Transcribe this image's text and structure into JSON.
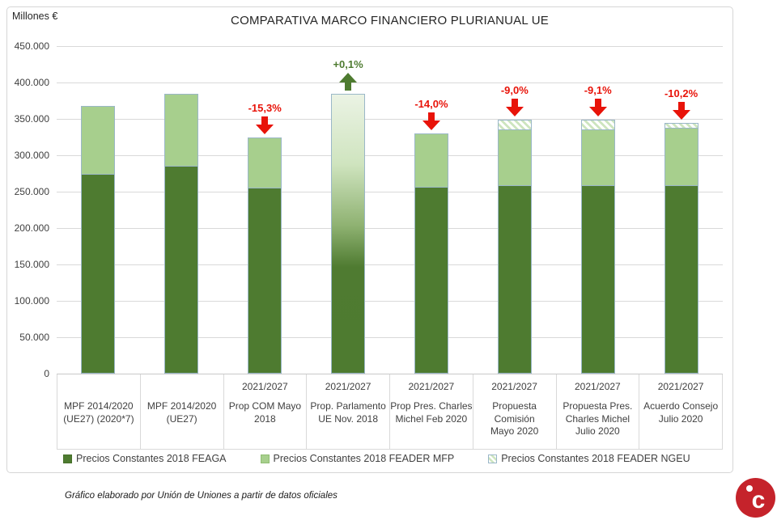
{
  "title": "COMPARATIVA MARCO FINANCIERO PLURIANUAL UE",
  "y_axis": {
    "unit_label": "Millones €",
    "tick_labels": [
      "450.000",
      "400.000",
      "350.000",
      "300.000",
      "250.000",
      "200.000",
      "150.000",
      "100.000",
      "50.000",
      "0"
    ],
    "max": 450000,
    "step": 50000
  },
  "chart_data": {
    "type": "bar",
    "subtype": "stacked",
    "title": "COMPARATIVA MARCO FINANCIERO PLURIANUAL UE",
    "ylabel": "Millones €",
    "ylim": [
      0,
      450000
    ],
    "grid": true,
    "legend_position": "bottom",
    "series_names": [
      "Precios Constantes 2018 FEAGA",
      "Precios Constantes 2018 FEADER MFP",
      "Precios Constantes 2018 FEADER NGEU"
    ],
    "categories": [
      {
        "period": "",
        "name_lines": [
          "MPF 2014/2020",
          "(UE27) (2020*7)"
        ]
      },
      {
        "period": "",
        "name_lines": [
          "MPF 2014/2020",
          "(UE27)"
        ]
      },
      {
        "period": "2021/2027",
        "name_lines": [
          "Prop COM Mayo",
          "2018"
        ]
      },
      {
        "period": "2021/2027",
        "name_lines": [
          "Prop. Parlamento",
          "UE Nov. 2018"
        ]
      },
      {
        "period": "2021/2027",
        "name_lines": [
          "Prop Pres. Charles",
          "Michel Feb 2020"
        ]
      },
      {
        "period": "2021/2027",
        "name_lines": [
          "Propuesta",
          "Comisión",
          "Mayo 2020"
        ]
      },
      {
        "period": "2021/2027",
        "name_lines": [
          "Propuesta Pres.",
          "Charles Michel",
          "Julio 2020"
        ]
      },
      {
        "period": "2021/2027",
        "name_lines": [
          "Acuerdo Consejo",
          "Julio 2020"
        ]
      }
    ],
    "bars": [
      {
        "feaga": 273000,
        "feader_mfp": 95000,
        "feader_ngeu": 0,
        "total": 368000,
        "gradient": false,
        "annotation": null
      },
      {
        "feaga": 285000,
        "feader_mfp": 99000,
        "feader_ngeu": 0,
        "total": 384000,
        "gradient": false,
        "annotation": null
      },
      {
        "feaga": 254000,
        "feader_mfp": 71000,
        "feader_ngeu": 0,
        "total": 325000,
        "gradient": false,
        "annotation": {
          "text": "-15,3%",
          "direction": "down",
          "sentiment": "neg"
        }
      },
      {
        "feaga": 0,
        "feader_mfp": 0,
        "feader_ngeu": 0,
        "total": 384000,
        "gradient": true,
        "annotation": {
          "text": "+0,1%",
          "direction": "up",
          "sentiment": "pos"
        }
      },
      {
        "feaga": 256000,
        "feader_mfp": 74000,
        "feader_ngeu": 0,
        "total": 330000,
        "gradient": false,
        "annotation": {
          "text": "-14,0%",
          "direction": "down",
          "sentiment": "neg"
        }
      },
      {
        "feaga": 258000,
        "feader_mfp": 76000,
        "feader_ngeu": 15000,
        "total": 349000,
        "gradient": false,
        "annotation": {
          "text": "-9,0%",
          "direction": "down",
          "sentiment": "neg"
        }
      },
      {
        "feaga": 258000,
        "feader_mfp": 76000,
        "feader_ngeu": 15000,
        "total": 349000,
        "gradient": false,
        "annotation": {
          "text": "-9,1%",
          "direction": "down",
          "sentiment": "neg"
        }
      },
      {
        "feaga": 258000,
        "feader_mfp": 79000,
        "feader_ngeu": 8000,
        "total": 345000,
        "gradient": false,
        "annotation": {
          "text": "-10,2%",
          "direction": "down",
          "sentiment": "neg"
        }
      }
    ]
  },
  "legend": {
    "items": [
      {
        "label": "Precios Constantes 2018 FEAGA",
        "swatch": "feaga"
      },
      {
        "label": "Precios Constantes 2018 FEADER MFP",
        "swatch": "feader_mfp"
      },
      {
        "label": "Precios Constantes 2018 FEADER NGEU",
        "swatch": "feader_ngeu"
      }
    ]
  },
  "footer": {
    "credit": "Gráfico elaborado por Unión de Uniones a partir de datos oficiales"
  },
  "logo": {
    "letter": "c"
  },
  "colors": {
    "feaga": "#4e7b30",
    "feader_mfp": "#a7cf8d",
    "ngeu_stripe": "#cde5bf",
    "bar_border": "#9ab7c8",
    "negative": "#e81309",
    "positive": "#4e7b30",
    "gridline": "#d9d9d9",
    "text": "#404040",
    "logo_red": "#c5232b"
  }
}
